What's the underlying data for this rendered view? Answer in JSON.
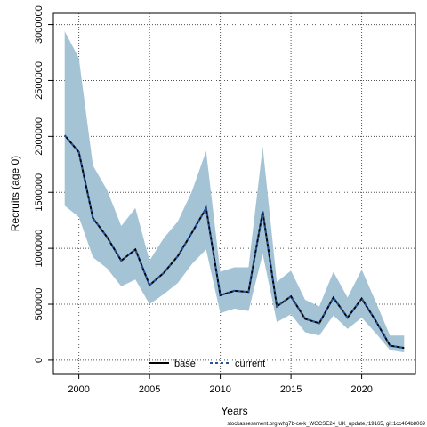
{
  "chart_data": {
    "type": "line",
    "xlabel": "Years",
    "ylabel": "Recruits (age 0)",
    "xlim": [
      1998.2,
      2023.8
    ],
    "ylim": [
      -120000,
      3100000
    ],
    "x_ticks": [
      2000,
      2005,
      2010,
      2015,
      2020
    ],
    "x_tick_labels": [
      "2000",
      "2005",
      "2010",
      "2015",
      "2020"
    ],
    "y_ticks": [
      0,
      500000,
      1000000,
      1500000,
      2000000,
      2500000,
      3000000
    ],
    "y_tick_labels": [
      "0",
      "500000",
      "1000000",
      "1500000",
      "2000000",
      "2500000",
      "3000000"
    ],
    "grid": true,
    "x": [
      1999,
      2000,
      2001,
      2002,
      2003,
      2004,
      2005,
      2006,
      2007,
      2008,
      2009,
      2010,
      2011,
      2012,
      2013,
      2014,
      2015,
      2016,
      2017,
      2018,
      2019,
      2020,
      2021,
      2022,
      2023
    ],
    "series": [
      {
        "name": "base",
        "color": "#000000",
        "style": "solid",
        "values": [
          2010000,
          1860000,
          1270000,
          1100000,
          890000,
          990000,
          670000,
          780000,
          930000,
          1140000,
          1360000,
          580000,
          620000,
          610000,
          1330000,
          480000,
          570000,
          370000,
          330000,
          560000,
          380000,
          550000,
          350000,
          130000,
          110000
        ]
      },
      {
        "name": "current",
        "color": "#2554a0",
        "style": "dashed",
        "values": [
          2010000,
          1860000,
          1270000,
          1100000,
          890000,
          990000,
          670000,
          780000,
          930000,
          1140000,
          1360000,
          580000,
          620000,
          610000,
          1330000,
          480000,
          570000,
          370000,
          330000,
          560000,
          380000,
          550000,
          350000,
          130000,
          110000
        ]
      }
    ],
    "band": {
      "color": "#a4c4d6",
      "lower": [
        1380000,
        1280000,
        920000,
        820000,
        660000,
        720000,
        500000,
        590000,
        690000,
        860000,
        990000,
        420000,
        460000,
        440000,
        950000,
        340000,
        410000,
        250000,
        220000,
        400000,
        280000,
        380000,
        240000,
        90000,
        70000
      ],
      "upper": [
        2940000,
        2700000,
        1740000,
        1520000,
        1200000,
        1360000,
        890000,
        1090000,
        1240000,
        1510000,
        1870000,
        790000,
        830000,
        830000,
        1910000,
        700000,
        800000,
        540000,
        480000,
        790000,
        560000,
        810000,
        520000,
        220000,
        220000
      ]
    },
    "legend": {
      "placement": "bottom-center",
      "entries": [
        "base",
        "current"
      ]
    }
  },
  "footer_text": "stockassessment.org,whg7b-ce-k_WGCSE24_UK_update,r19165, git:1cc464b8069"
}
